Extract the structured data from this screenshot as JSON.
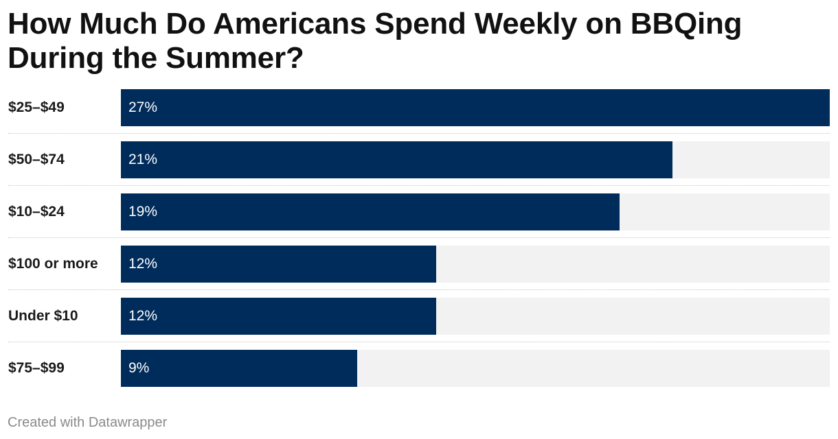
{
  "title": "How Much Do Americans Spend Weekly on BBQing During the Summer?",
  "footer": "Created with Datawrapper",
  "colors": {
    "bar": "#002c5c",
    "track": "#f2f2f2",
    "value_text": "#ffffff",
    "footer_text": "#8a8a8a"
  },
  "chart_data": {
    "type": "bar",
    "orientation": "horizontal",
    "title": "How Much Do Americans Spend Weekly on BBQing During the Summer?",
    "categories": [
      "$25–$49",
      "$50–$74",
      "$10–$24",
      "$100 or more",
      "Under $10",
      "$75–$99"
    ],
    "values": [
      27,
      21,
      19,
      12,
      12,
      9
    ],
    "value_labels": [
      "27%",
      "21%",
      "19%",
      "12%",
      "12%",
      "9%"
    ],
    "unit": "%",
    "xlim": [
      0,
      27
    ],
    "grid": false,
    "legend": "none"
  }
}
